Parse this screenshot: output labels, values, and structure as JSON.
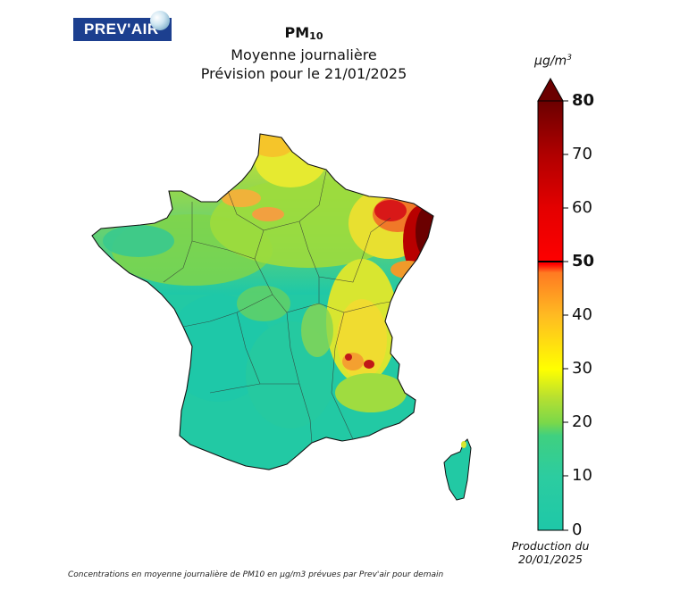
{
  "logo": {
    "text": "PREV'AIR"
  },
  "title": {
    "pollutant": "PM",
    "pollutant_sub": "10",
    "line2": "Moyenne journalière",
    "line3": "Prévision pour le 21/01/2025"
  },
  "legend": {
    "unit_main": "µg/m",
    "unit_sup": "3",
    "ticks": [
      {
        "value": "80",
        "bold": true
      },
      {
        "value": "70",
        "bold": false
      },
      {
        "value": "60",
        "bold": false
      },
      {
        "value": "50",
        "bold": true
      },
      {
        "value": "40",
        "bold": false
      },
      {
        "value": "30",
        "bold": false
      },
      {
        "value": "20",
        "bold": false
      },
      {
        "value": "10",
        "bold": false
      },
      {
        "value": "0",
        "bold": false
      }
    ],
    "colors": {
      "low": "#1ec8a8",
      "mid_green": "#7ad84a",
      "yellow": "#ffff00",
      "orange": "#ff9900",
      "red": "#ff0000",
      "dark_red": "#6b0000"
    }
  },
  "production": {
    "line1": "Production du",
    "line2": "20/01/2025"
  },
  "footnote": "Concentrations en moyenne journalière de PM10 en µg/m3 prévues par Prev'air pour demain"
}
